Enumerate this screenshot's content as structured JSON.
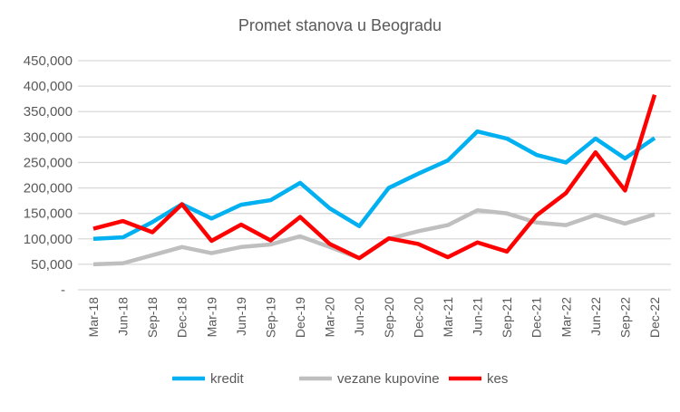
{
  "chart_data": {
    "type": "line",
    "title": "Promet stanova u Beogradu",
    "xlabel": "",
    "ylabel": "",
    "ylim": [
      0,
      450000
    ],
    "yticks": [
      0,
      50000,
      100000,
      150000,
      200000,
      250000,
      300000,
      350000,
      400000,
      450000
    ],
    "ytick_labels": [
      "-",
      "50,000",
      "100,000",
      "150,000",
      "200,000",
      "250,000",
      "300,000",
      "350,000",
      "400,000",
      "450,000"
    ],
    "grid": true,
    "legend": "bottom",
    "categories": [
      "Mar-18",
      "Jun-18",
      "Sep-18",
      "Dec-18",
      "Mar-19",
      "Jun-19",
      "Sep-19",
      "Dec-19",
      "Mar-20",
      "Jun-20",
      "Sep-20",
      "Dec-20",
      "Mar-21",
      "Jun-21",
      "Sep-21",
      "Dec-21",
      "Mar-22",
      "Jun-22",
      "Sep-22",
      "Dec-22"
    ],
    "series": [
      {
        "name": "kredit",
        "color": "#00B0F0",
        "values": [
          100000,
          103000,
          133000,
          168000,
          140000,
          167000,
          176000,
          210000,
          160000,
          125000,
          200000,
          228000,
          254000,
          311000,
          297000,
          265000,
          250000,
          297000,
          258000,
          298000
        ]
      },
      {
        "name": "vezane kupovine",
        "color": "#BFBFBF",
        "values": [
          50000,
          52000,
          68000,
          84000,
          72000,
          84000,
          89000,
          105000,
          84000,
          62000,
          100000,
          115000,
          127000,
          156000,
          150000,
          132000,
          127000,
          147000,
          130000,
          148000
        ]
      },
      {
        "name": "kes",
        "color": "#FF0000",
        "values": [
          120000,
          135000,
          113000,
          168000,
          96000,
          128000,
          97000,
          143000,
          90000,
          62000,
          101000,
          90000,
          64000,
          93000,
          75000,
          146000,
          190000,
          270000,
          195000,
          383000
        ]
      }
    ]
  }
}
